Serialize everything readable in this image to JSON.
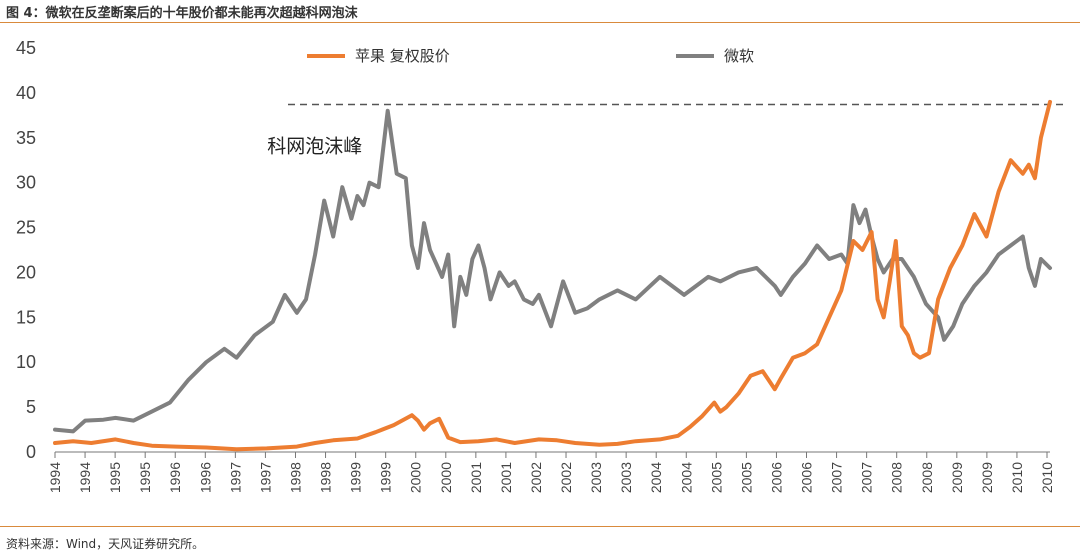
{
  "figure": {
    "title": "图 4：微软在反垄断案后的十年股价都未能再次超越科网泡沫",
    "source": "资料来源：Wind，天风证券研究所。"
  },
  "chart_data": {
    "type": "line",
    "ylim": [
      0,
      45
    ],
    "y_ticks": [
      0,
      5,
      10,
      15,
      20,
      25,
      30,
      35,
      40,
      45
    ],
    "x_range": [
      1994.0,
      2010.45
    ],
    "x_tick_labels": [
      "1994",
      "1994",
      "1995",
      "1995",
      "1996",
      "1996",
      "1997",
      "1997",
      "1998",
      "1998",
      "1999",
      "1999",
      "2000",
      "2000",
      "2001",
      "2001",
      "2002",
      "2002",
      "2003",
      "2003",
      "2004",
      "2004",
      "2005",
      "2005",
      "2006",
      "2006",
      "2007",
      "2007",
      "2008",
      "2008",
      "2009",
      "2009",
      "2010",
      "2010"
    ],
    "grid": false,
    "legend": "top-center",
    "reference_line": {
      "y": 38.7,
      "style": "dashed"
    },
    "annotation": {
      "text": "科网泡沫峰",
      "x": 1998.5,
      "y": 34.5
    },
    "series": [
      {
        "name": "苹果 复权股价",
        "color": "#ed7d31",
        "x": [
          1994.0,
          1994.3,
          1994.6,
          1995.0,
          1995.3,
          1995.6,
          1996.0,
          1996.5,
          1997.0,
          1997.5,
          1998.0,
          1998.3,
          1998.6,
          1999.0,
          1999.3,
          1999.6,
          1999.9,
          2000.0,
          2000.1,
          2000.2,
          2000.35,
          2000.5,
          2000.7,
          2001.0,
          2001.3,
          2001.6,
          2002.0,
          2002.3,
          2002.6,
          2003.0,
          2003.3,
          2003.6,
          2004.0,
          2004.3,
          2004.5,
          2004.7,
          2004.9,
          2005.0,
          2005.1,
          2005.3,
          2005.5,
          2005.7,
          2005.9,
          2006.0,
          2006.2,
          2006.4,
          2006.6,
          2006.8,
          2007.0,
          2007.2,
          2007.35,
          2007.5,
          2007.6,
          2007.7,
          2007.8,
          2007.9,
          2008.0,
          2008.1,
          2008.2,
          2008.3,
          2008.45,
          2008.6,
          2008.8,
          2009.0,
          2009.2,
          2009.4,
          2009.6,
          2009.8,
          2010.0,
          2010.1,
          2010.2,
          2010.3,
          2010.45
        ],
        "values": [
          1.0,
          1.2,
          1.0,
          1.4,
          1.0,
          0.7,
          0.6,
          0.5,
          0.3,
          0.4,
          0.6,
          1.0,
          1.3,
          1.5,
          2.2,
          3.0,
          4.1,
          3.5,
          2.5,
          3.2,
          3.7,
          1.6,
          1.1,
          1.2,
          1.4,
          1.0,
          1.4,
          1.3,
          1.0,
          0.8,
          0.9,
          1.2,
          1.4,
          1.8,
          2.8,
          4.0,
          5.5,
          4.5,
          5.0,
          6.5,
          8.5,
          9.0,
          7.0,
          8.2,
          10.5,
          11.0,
          12.0,
          15.0,
          18.0,
          23.5,
          22.5,
          24.5,
          17.0,
          15.0,
          19.0,
          23.5,
          14.0,
          13.0,
          11.0,
          10.5,
          11.0,
          17.0,
          20.5,
          23.0,
          26.5,
          24.0,
          29.0,
          32.5,
          31.0,
          32.0,
          30.5,
          35.0,
          39.0
        ]
      },
      {
        "name": "微软",
        "color": "#808080",
        "x": [
          1994.0,
          1994.3,
          1994.5,
          1994.8,
          1995.0,
          1995.3,
          1995.6,
          1995.9,
          1996.2,
          1996.5,
          1996.8,
          1997.0,
          1997.3,
          1997.6,
          1997.8,
          1998.0,
          1998.15,
          1998.3,
          1998.45,
          1998.6,
          1998.75,
          1998.9,
          1999.0,
          1999.1,
          1999.2,
          1999.35,
          1999.5,
          1999.65,
          1999.8,
          1999.9,
          2000.0,
          2000.1,
          2000.2,
          2000.3,
          2000.4,
          2000.5,
          2000.6,
          2000.7,
          2000.8,
          2000.9,
          2001.0,
          2001.1,
          2001.2,
          2001.35,
          2001.5,
          2001.6,
          2001.75,
          2001.9,
          2002.0,
          2002.2,
          2002.4,
          2002.6,
          2002.8,
          2003.0,
          2003.3,
          2003.6,
          2004.0,
          2004.2,
          2004.4,
          2004.6,
          2004.8,
          2005.0,
          2005.3,
          2005.6,
          2005.9,
          2006.0,
          2006.2,
          2006.4,
          2006.6,
          2006.8,
          2007.0,
          2007.1,
          2007.2,
          2007.3,
          2007.4,
          2007.5,
          2007.6,
          2007.7,
          2007.85,
          2008.0,
          2008.2,
          2008.4,
          2008.6,
          2008.7,
          2008.85,
          2009.0,
          2009.2,
          2009.4,
          2009.6,
          2009.8,
          2010.0,
          2010.1,
          2010.2,
          2010.3,
          2010.45
        ],
        "values": [
          2.5,
          2.3,
          3.5,
          3.6,
          3.8,
          3.5,
          4.5,
          5.5,
          8.0,
          10.0,
          11.5,
          10.5,
          13.0,
          14.5,
          17.5,
          15.5,
          17.0,
          22.0,
          28.0,
          24.0,
          29.5,
          26.0,
          28.5,
          27.5,
          30.0,
          29.5,
          38.0,
          31.0,
          30.5,
          23.0,
          20.5,
          25.5,
          22.5,
          21.0,
          19.5,
          22.0,
          14.0,
          19.5,
          17.5,
          21.5,
          23.0,
          20.5,
          17.0,
          20.0,
          18.5,
          19.0,
          17.0,
          16.5,
          17.5,
          14.0,
          19.0,
          15.5,
          16.0,
          17.0,
          18.0,
          17.0,
          19.5,
          18.5,
          17.5,
          18.5,
          19.5,
          19.0,
          20.0,
          20.5,
          18.5,
          17.5,
          19.5,
          21.0,
          23.0,
          21.5,
          22.0,
          21.0,
          27.5,
          25.5,
          27.0,
          24.0,
          21.5,
          20.0,
          21.5,
          21.5,
          19.5,
          16.5,
          15.0,
          12.5,
          14.0,
          16.5,
          18.5,
          20.0,
          22.0,
          23.0,
          24.0,
          20.5,
          18.5,
          21.5,
          20.5
        ]
      }
    ]
  }
}
